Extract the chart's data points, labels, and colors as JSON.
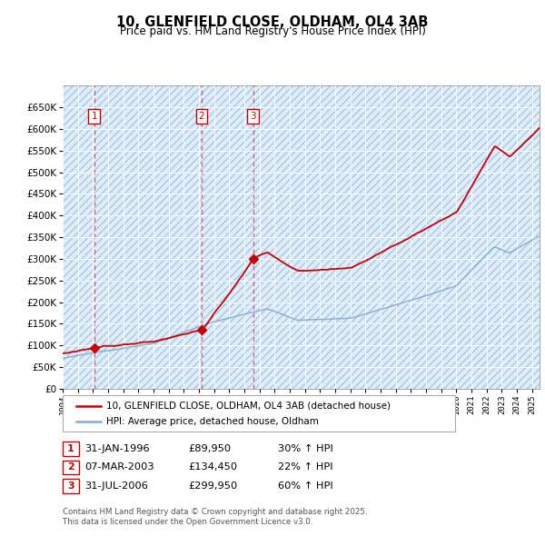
{
  "title": "10, GLENFIELD CLOSE, OLDHAM, OL4 3AB",
  "subtitle": "Price paid vs. HM Land Registry's House Price Index (HPI)",
  "legend_line1": "10, GLENFIELD CLOSE, OLDHAM, OL4 3AB (detached house)",
  "legend_line2": "HPI: Average price, detached house, Oldham",
  "footer_line1": "Contains HM Land Registry data © Crown copyright and database right 2025.",
  "footer_line2": "This data is licensed under the Open Government Licence v3.0.",
  "transactions": [
    {
      "num": 1,
      "date": "31-JAN-1996",
      "price": 89950,
      "hpi_note": "30% ↑ HPI",
      "year": 1996.08
    },
    {
      "num": 2,
      "date": "07-MAR-2003",
      "price": 134450,
      "hpi_note": "22% ↑ HPI",
      "year": 2003.18
    },
    {
      "num": 3,
      "date": "31-JUL-2006",
      "price": 299950,
      "hpi_note": "60% ↑ HPI",
      "year": 2006.58
    }
  ],
  "price_color": "#cc0000",
  "hpi_color": "#88aacc",
  "bg_color": "#ddeeff",
  "grid_color": "#ffffff",
  "dashed_color": "#dd4444",
  "ylim": [
    0,
    700000
  ],
  "yticks": [
    0,
    50000,
    100000,
    150000,
    200000,
    250000,
    300000,
    350000,
    400000,
    450000,
    500000,
    550000,
    600000,
    650000
  ],
  "xlim_start": 1994.0,
  "xlim_end": 2025.5,
  "figwidth": 6.0,
  "figheight": 5.9,
  "dpi": 100
}
